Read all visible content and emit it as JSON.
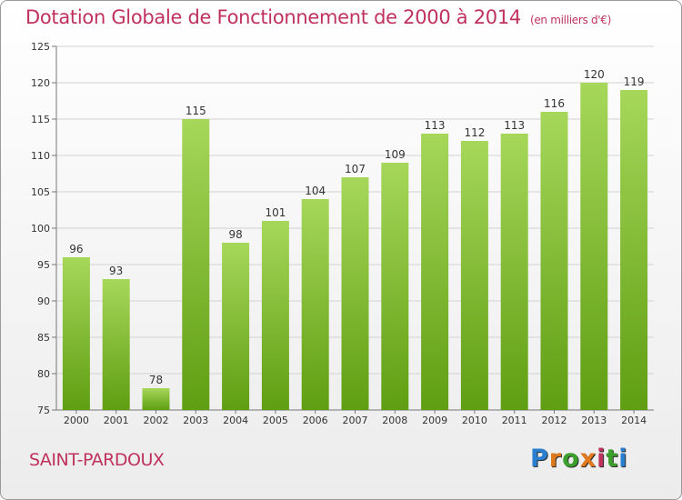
{
  "header": {
    "title": "Dotation Globale de Fonctionnement de 2000 à 2014",
    "subtitle": "(en milliers d'€)"
  },
  "footer": {
    "commune": "SAINT-PARDOUX",
    "brand": "Proxiti"
  },
  "colors": {
    "title": "#c0325e",
    "bar_light": "#a6d75a",
    "bar_dark": "#5f9e12",
    "grid": "#d2d2d2"
  },
  "chart_data": {
    "type": "bar",
    "categories": [
      "2000",
      "2001",
      "2002",
      "2003",
      "2004",
      "2005",
      "2006",
      "2007",
      "2008",
      "2009",
      "2010",
      "2011",
      "2012",
      "2013",
      "2014"
    ],
    "values": [
      96,
      93,
      78,
      115,
      98,
      101,
      104,
      107,
      109,
      113,
      112,
      113,
      116,
      120,
      119
    ],
    "ylim": [
      75,
      125
    ],
    "yticks": [
      75,
      80,
      85,
      90,
      95,
      100,
      105,
      110,
      115,
      120,
      125
    ],
    "grid": true,
    "data_labels": true
  }
}
